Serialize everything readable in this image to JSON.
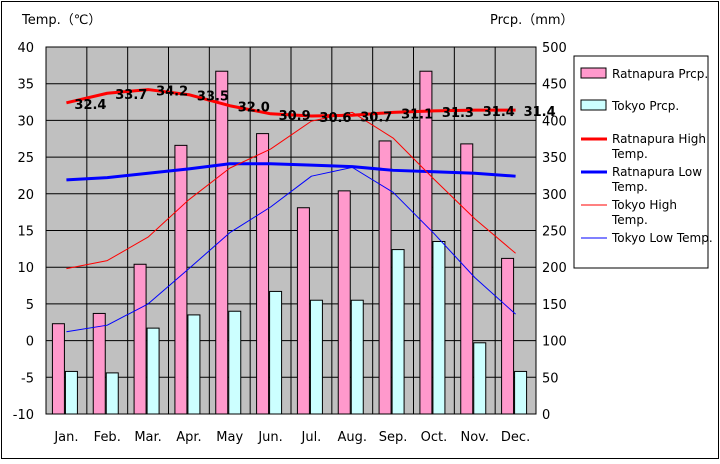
{
  "chart_data": {
    "type": "bar+line",
    "categories": [
      "Jan.",
      "Feb.",
      "Mar.",
      "Apr.",
      "May",
      "Jun.",
      "Jul.",
      "Aug.",
      "Sep.",
      "Oct.",
      "Nov.",
      "Dec."
    ],
    "left_axis": {
      "label": "Temp.（℃）",
      "ylim": [
        -10,
        40
      ],
      "ticks": [
        "40",
        "35",
        "30",
        "25",
        "20",
        "15",
        "10",
        "5",
        "0",
        "-5",
        "-10"
      ]
    },
    "right_axis": {
      "label": "Prcp.（mm）",
      "ylim": [
        0,
        500
      ],
      "ticks": [
        "500",
        "450",
        "400",
        "350",
        "300",
        "250",
        "200",
        "150",
        "100",
        "50",
        "0"
      ]
    },
    "bar_series": [
      {
        "name": "Ratnapura Prcp.",
        "color": "#ff99cc",
        "axis": "right",
        "values": [
          123,
          137,
          204,
          366,
          467,
          382,
          281,
          304,
          372,
          467,
          368,
          212
        ]
      },
      {
        "name": "Tokyo Prcp.",
        "color": "#ccffff",
        "axis": "right",
        "values": [
          58,
          56,
          117,
          135,
          140,
          167,
          155,
          155,
          224,
          235,
          97,
          58
        ]
      }
    ],
    "line_series": [
      {
        "name": "Ratnapura High Temp.",
        "color": "#ff0000",
        "width": 3,
        "axis": "left",
        "values": [
          32.4,
          33.7,
          34.2,
          33.5,
          32.0,
          30.9,
          30.6,
          30.7,
          31.1,
          31.3,
          31.4,
          31.4
        ]
      },
      {
        "name": "Ratnapura Low Temp.",
        "color": "#0000ff",
        "width": 3,
        "axis": "left",
        "values": [
          21.9,
          22.2,
          22.8,
          23.4,
          24.1,
          24.1,
          23.9,
          23.7,
          23.2,
          23.0,
          22.8,
          22.4
        ]
      },
      {
        "name": "Tokyo High Temp.",
        "color": "#ff0000",
        "width": 1,
        "axis": "left",
        "values": [
          9.8,
          10.9,
          14.1,
          19.2,
          23.5,
          26.1,
          29.9,
          31.1,
          27.6,
          22.0,
          16.6,
          11.9
        ]
      },
      {
        "name": "Tokyo Low Temp.",
        "color": "#0000ff",
        "width": 1,
        "axis": "left",
        "values": [
          1.2,
          2.1,
          5.0,
          9.8,
          14.7,
          18.2,
          22.4,
          23.6,
          20.2,
          14.6,
          8.6,
          3.6
        ]
      }
    ],
    "data_labels": [
      "32.4",
      "33.7",
      "34.2",
      "33.5",
      "32.0",
      "30.9",
      "30.6",
      "30.7",
      "31.1",
      "31.3",
      "31.4",
      "31.4"
    ],
    "legend": {
      "position": "right",
      "entries": [
        {
          "label": "Ratnapura Prcp.",
          "kind": "bar",
          "color": "#ff99cc"
        },
        {
          "label": "Tokyo Prcp.",
          "kind": "bar",
          "color": "#ccffff"
        },
        {
          "label": "Ratnapura High Temp.",
          "kind": "line",
          "color": "#ff0000",
          "width": 3
        },
        {
          "label": "Ratnapura Low Temp.",
          "kind": "line",
          "color": "#0000ff",
          "width": 3
        },
        {
          "label": "Tokyo High Temp.",
          "kind": "line",
          "color": "#ff0000",
          "width": 1
        },
        {
          "label": "Tokyo Low Temp.",
          "kind": "line",
          "color": "#0000ff",
          "width": 1
        }
      ]
    },
    "plot_background": "#c0c0c0",
    "grid": true
  }
}
